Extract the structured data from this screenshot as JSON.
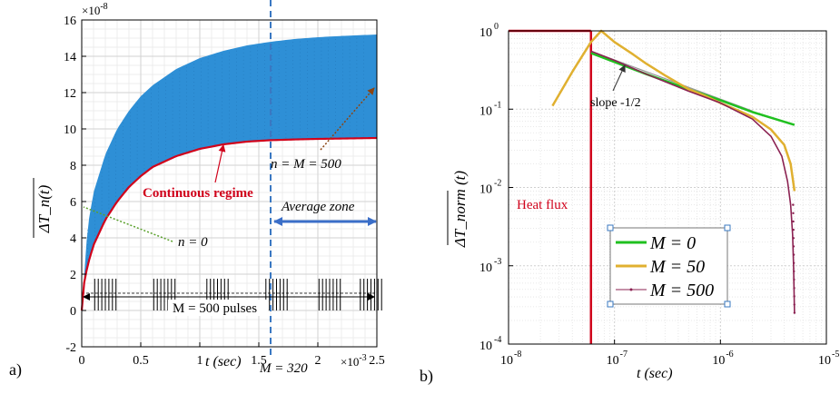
{
  "chart_data": [
    {
      "id": "a",
      "type": "area",
      "panel_label": "a)",
      "xlabel": "t (sec)",
      "ylabel": "ΔT_n(t)",
      "x_exponent": "×10",
      "x_exponent_power": "-3",
      "y_exponent": "×10",
      "y_exponent_power": "-8",
      "xlim": [
        0,
        2.5
      ],
      "ylim": [
        -2,
        16
      ],
      "x_ticks": [
        0,
        0.5,
        1,
        1.5,
        2,
        2.5
      ],
      "x_tick_labels": [
        "0",
        "0.5",
        "1",
        "1.5",
        "2",
        "2.5"
      ],
      "y_ticks": [
        -2,
        0,
        2,
        4,
        6,
        8,
        10,
        12,
        14,
        16
      ],
      "y_tick_labels": [
        "-2",
        "0",
        "2",
        "4",
        "6",
        "8",
        "10",
        "12",
        "14",
        "16"
      ],
      "grid": true,
      "series": [
        {
          "role": "upper-envelope",
          "x": [
            0,
            0.05,
            0.1,
            0.2,
            0.3,
            0.4,
            0.5,
            0.6,
            0.8,
            1.0,
            1.2,
            1.4,
            1.6,
            1.8,
            2.0,
            2.2,
            2.5
          ],
          "y": [
            0,
            4.6,
            6.5,
            8.6,
            10.0,
            11.0,
            11.8,
            12.4,
            13.3,
            13.9,
            14.3,
            14.6,
            14.8,
            14.95,
            15.05,
            15.12,
            15.2
          ]
        },
        {
          "role": "continuous-regime",
          "x": [
            0,
            0.02,
            0.05,
            0.1,
            0.2,
            0.3,
            0.4,
            0.5,
            0.6,
            0.8,
            1.0,
            1.2,
            1.4,
            1.6,
            1.8,
            2.0,
            2.2,
            2.5
          ],
          "y": [
            0,
            1.5,
            2.5,
            3.6,
            5.0,
            6.0,
            6.8,
            7.4,
            7.9,
            8.5,
            8.9,
            9.15,
            9.3,
            9.38,
            9.42,
            9.45,
            9.47,
            9.5
          ]
        }
      ],
      "pulse_bursts": {
        "baseline_y": 0,
        "top_y": 1.75,
        "mid_y": 0.95,
        "centers": [
          0.2,
          0.7,
          1.15,
          1.65,
          2.1,
          2.45
        ],
        "half_width": 0.09,
        "lines_per_burst": 7
      },
      "vertical_marker": {
        "x": 1.6,
        "label": "M = 320"
      },
      "annotations": {
        "continuous": "Continuous regime",
        "n_equals_m": "n = M = 500",
        "average_zone": "Average zone",
        "n_zero": "n = 0",
        "pulses": "M = 500 pulses"
      },
      "colors": {
        "fill": "#2e8fd6",
        "curve": "#d0021b",
        "marker": "#3a78c2",
        "arrow_blue": "#3a6ec8",
        "n_arrow": "#8b4513",
        "n0_arrow": "#5aa02c"
      }
    },
    {
      "id": "b",
      "type": "line",
      "panel_label": "b)",
      "xlabel": "t (sec)",
      "ylabel": "ΔT_norm (t)",
      "x_scale": "log",
      "y_scale": "log",
      "xlim": [
        1e-08,
        1e-05
      ],
      "ylim": [
        0.0001,
        1
      ],
      "x_ticks": [
        -8,
        -7,
        -6,
        -5
      ],
      "x_tick_labels": [
        "10",
        "10",
        "10",
        "10"
      ],
      "x_tick_powers": [
        "-8",
        "-7",
        "-6",
        "-5"
      ],
      "y_ticks": [
        -4,
        -3,
        -2,
        -1,
        0
      ],
      "y_tick_labels": [
        "10",
        "10",
        "10",
        "10",
        "10"
      ],
      "y_tick_powers": [
        "-4",
        "-3",
        "-2",
        "-1",
        "0"
      ],
      "grid": true,
      "legend_placement": "lower-center",
      "heat_flux": {
        "label": "Heat flux",
        "x_end": 6e-08,
        "y": 1
      },
      "slope_label": "slope -1/2",
      "series": [
        {
          "name": "M = 0",
          "color": "#20c020",
          "x": [
            6e-08,
            1e-07,
            2e-07,
            5e-07,
            1e-06,
            2e-06,
            5e-06
          ],
          "y": [
            0.52,
            0.4,
            0.28,
            0.18,
            0.13,
            0.092,
            0.063
          ]
        },
        {
          "name": "M = 50",
          "color": "#e0b030",
          "x": [
            2.6e-08,
            4e-08,
            6e-08,
            7.5e-08,
            1e-07,
            1.5e-07,
            2e-07,
            3e-07,
            5e-07,
            7e-07,
            1e-06,
            1.5e-06,
            2e-06,
            3e-06,
            4e-06,
            4.6e-06,
            5e-06
          ],
          "y": [
            0.11,
            0.3,
            0.72,
            1.0,
            0.72,
            0.5,
            0.38,
            0.27,
            0.18,
            0.15,
            0.12,
            0.095,
            0.08,
            0.055,
            0.035,
            0.02,
            0.009
          ]
        },
        {
          "name": "M = 500",
          "color": "#8b2252",
          "x": [
            6e-08,
            1e-07,
            2e-07,
            5e-07,
            1e-06,
            2e-06,
            3e-06,
            3.8e-06,
            4.3e-06,
            4.6e-06,
            4.8e-06,
            4.9e-06,
            4.95e-06,
            5e-06
          ],
          "y": [
            0.55,
            0.42,
            0.28,
            0.17,
            0.12,
            0.075,
            0.045,
            0.025,
            0.012,
            0.006,
            0.0025,
            0.001,
            0.0005,
            0.00025
          ]
        }
      ],
      "slope_reference": {
        "x": [
          6e-08,
          2e-06
        ],
        "y": [
          0.55,
          0.095
        ]
      }
    }
  ]
}
